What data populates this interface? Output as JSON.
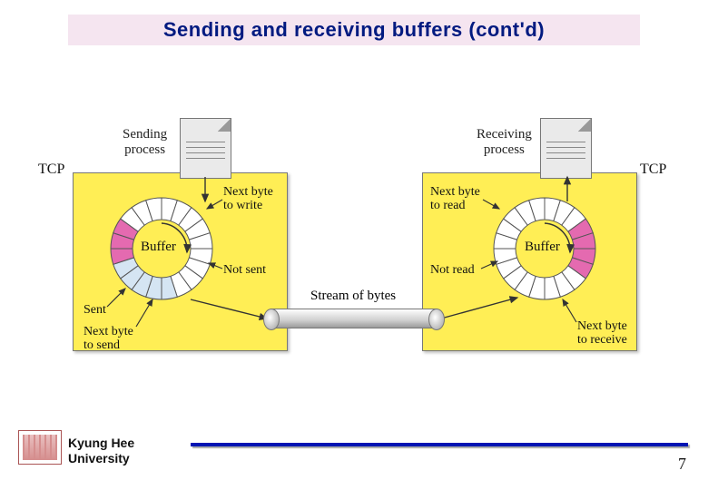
{
  "title": "Sending and receiving buffers (cont'd)",
  "title_color": "#001a80",
  "title_bg": "#f5e5f0",
  "tcp_box_bg": "#ffee55",
  "tcp_box_border": "#777777",
  "labels": {
    "tcp": "TCP",
    "send_proc": "Sending\nprocess",
    "recv_proc": "Receiving\nprocess",
    "buffer": "Buffer",
    "next_write": "Next byte\nto write",
    "not_sent": "Not sent",
    "sent": "Sent",
    "next_send": "Next byte\nto send",
    "next_read": "Next byte\nto read",
    "not_read": "Not read",
    "next_recv": "Next byte\nto receive",
    "stream": "Stream of bytes"
  },
  "buffer_ring": {
    "segments": 20,
    "inner_r": 32,
    "outer_r": 56,
    "stroke": "#555555",
    "colors": {
      "empty": "#ffffff",
      "written_not_sent": "#d5e5f3",
      "sent": "#e46ab0",
      "received_not_read": "#e46ab0"
    },
    "left_pattern": [
      "empty",
      "empty",
      "empty",
      "empty",
      "empty",
      "empty",
      "empty",
      "empty",
      "empty",
      "written_not_sent",
      "written_not_sent",
      "written_not_sent",
      "written_not_sent",
      "written_not_sent",
      "sent",
      "sent",
      "sent",
      "empty",
      "empty",
      "empty"
    ],
    "right_pattern": [
      "empty",
      "empty",
      "empty",
      "received_not_read",
      "received_not_read",
      "received_not_read",
      "received_not_read",
      "empty",
      "empty",
      "empty",
      "empty",
      "empty",
      "empty",
      "empty",
      "empty",
      "empty",
      "empty",
      "empty",
      "empty",
      "empty"
    ]
  },
  "footer": {
    "university": "Kyung Hee\nUniversity",
    "page": "7",
    "rule_color": "#0015b3"
  }
}
